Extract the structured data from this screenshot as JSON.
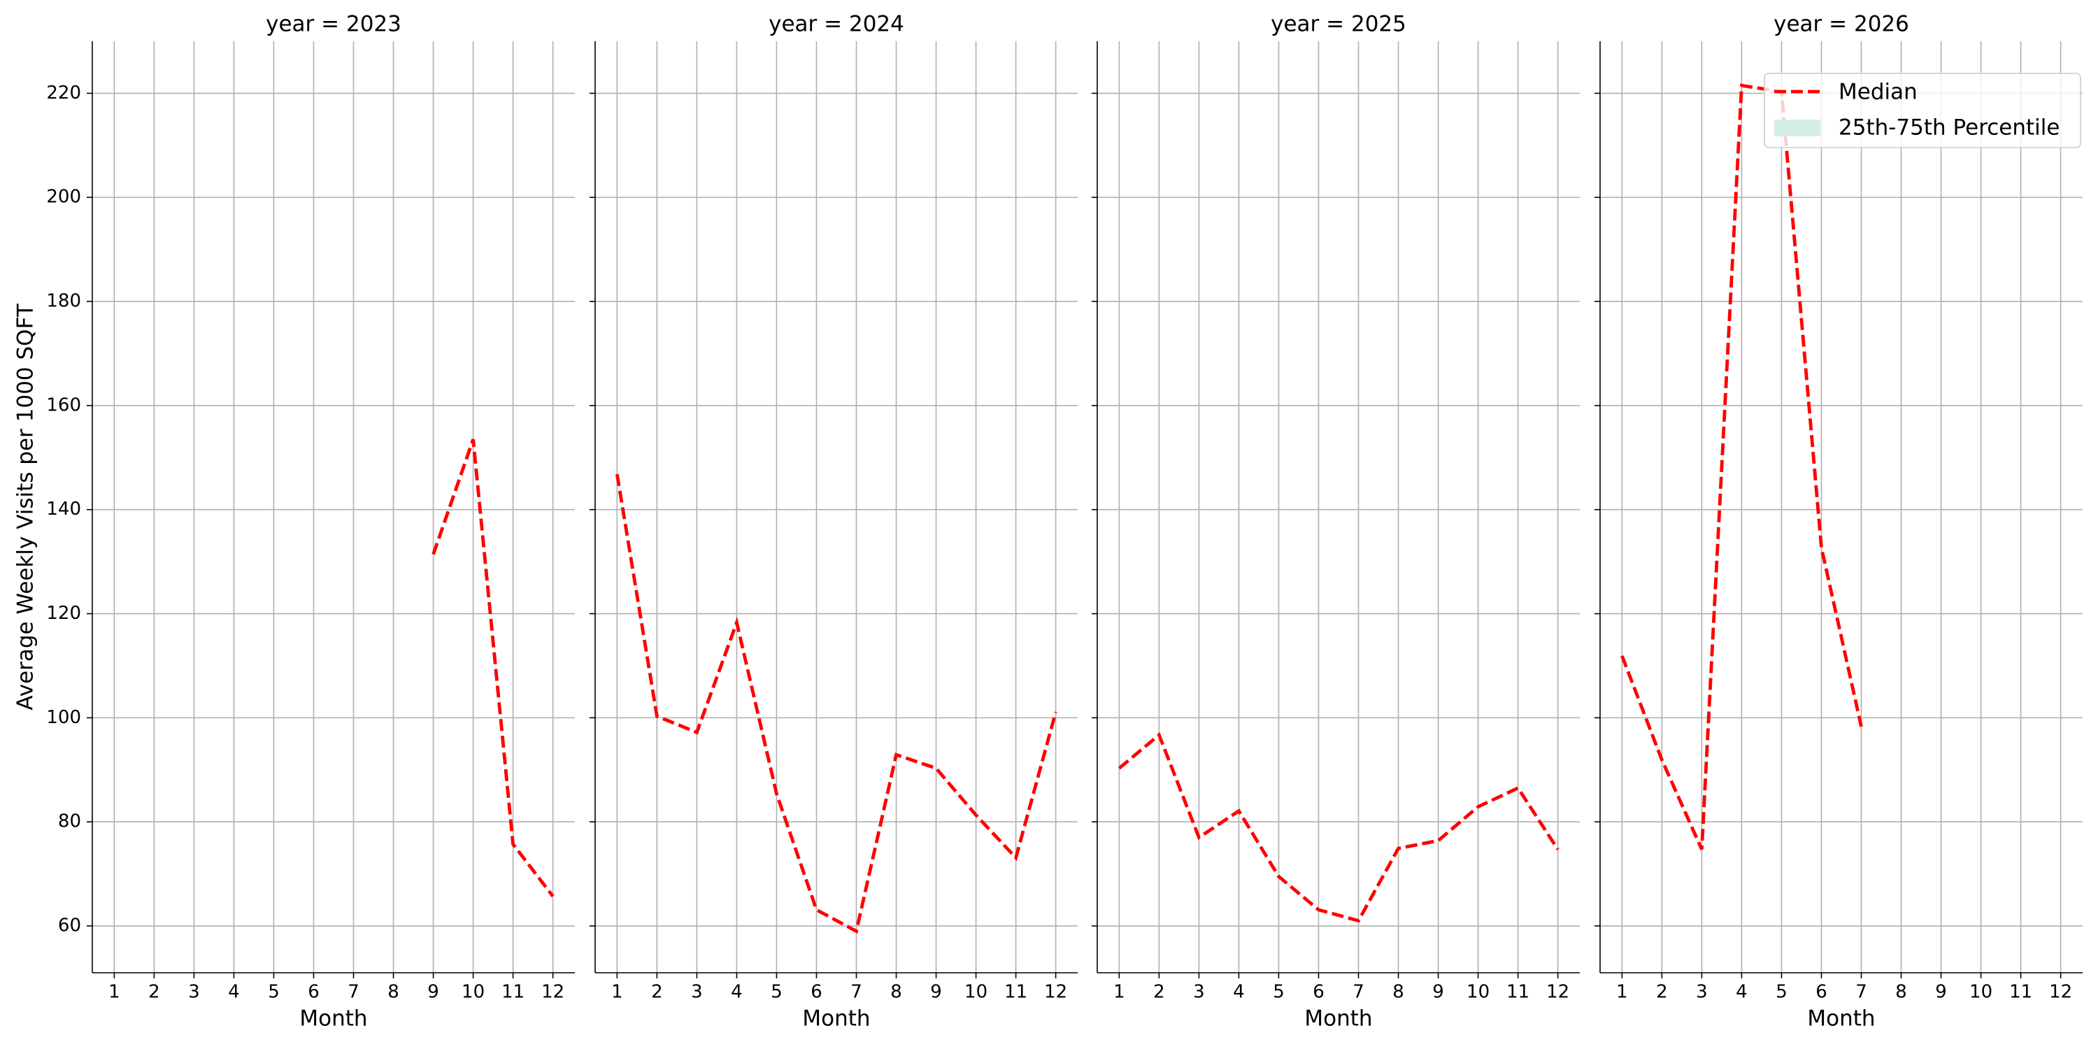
{
  "chart_data": [
    {
      "type": "line",
      "title": "year = 2023",
      "xlabel": "Month",
      "ylabel": "Average Weekly Visits per 1000 SQFT",
      "x": [
        1,
        2,
        3,
        4,
        5,
        6,
        7,
        8,
        9,
        10,
        11,
        12
      ],
      "xlim": [
        0.45,
        12.55
      ],
      "xticks": [
        1,
        2,
        3,
        4,
        5,
        6,
        7,
        8,
        9,
        10,
        11,
        12
      ],
      "ylim": [
        51,
        230
      ],
      "yticks": [
        60,
        80,
        100,
        120,
        140,
        160,
        180,
        200,
        220
      ],
      "grid": true,
      "series": [
        {
          "name": "Median",
          "color": "#ff0000",
          "values": [
            null,
            null,
            null,
            null,
            null,
            null,
            null,
            null,
            131.4,
            153.5,
            75.7,
            65.7
          ]
        }
      ]
    },
    {
      "type": "line",
      "title": "year = 2024",
      "xlabel": "Month",
      "x": [
        1,
        2,
        3,
        4,
        5,
        6,
        7,
        8,
        9,
        10,
        11,
        12
      ],
      "xlim": [
        0.45,
        12.55
      ],
      "xticks": [
        1,
        2,
        3,
        4,
        5,
        6,
        7,
        8,
        9,
        10,
        11,
        12
      ],
      "ylim": [
        51,
        230
      ],
      "yticks": [
        60,
        80,
        100,
        120,
        140,
        160,
        180,
        200,
        220
      ],
      "grid": true,
      "series": [
        {
          "name": "Median",
          "color": "#ff0000",
          "values": [
            146.8,
            100.3,
            97.2,
            118.3,
            85.4,
            63.1,
            59,
            92.9,
            90.3,
            81.3,
            73.1,
            101.1
          ]
        }
      ]
    },
    {
      "type": "line",
      "title": "year = 2025",
      "xlabel": "Month",
      "x": [
        1,
        2,
        3,
        4,
        5,
        6,
        7,
        8,
        9,
        10,
        11,
        12
      ],
      "xlim": [
        0.45,
        12.55
      ],
      "xticks": [
        1,
        2,
        3,
        4,
        5,
        6,
        7,
        8,
        9,
        10,
        11,
        12
      ],
      "ylim": [
        51,
        230
      ],
      "yticks": [
        60,
        80,
        100,
        120,
        140,
        160,
        180,
        200,
        220
      ],
      "grid": true,
      "series": [
        {
          "name": "Median",
          "color": "#ff0000",
          "values": [
            90.3,
            96.7,
            77,
            82.1,
            69.5,
            63.1,
            61,
            74.9,
            76.4,
            82.9,
            86.5,
            74.7
          ]
        }
      ]
    },
    {
      "type": "line",
      "title": "year = 2026",
      "xlabel": "Month",
      "x": [
        1,
        2,
        3,
        4,
        5,
        6,
        7,
        8,
        9,
        10,
        11,
        12
      ],
      "xlim": [
        0.45,
        12.55
      ],
      "xticks": [
        1,
        2,
        3,
        4,
        5,
        6,
        7,
        8,
        9,
        10,
        11,
        12
      ],
      "ylim": [
        51,
        230
      ],
      "yticks": [
        60,
        80,
        100,
        120,
        140,
        160,
        180,
        200,
        220
      ],
      "grid": true,
      "series": [
        {
          "name": "Median",
          "color": "#ff0000",
          "values": [
            111.9,
            91.9,
            74.7,
            221.5,
            220.3,
            132.7,
            98.3,
            null,
            null,
            null,
            null,
            null
          ]
        }
      ],
      "legend": {
        "loc": "upper right",
        "band_label": "25th-75th Percentile",
        "band_color": "#d5efe6"
      }
    }
  ]
}
